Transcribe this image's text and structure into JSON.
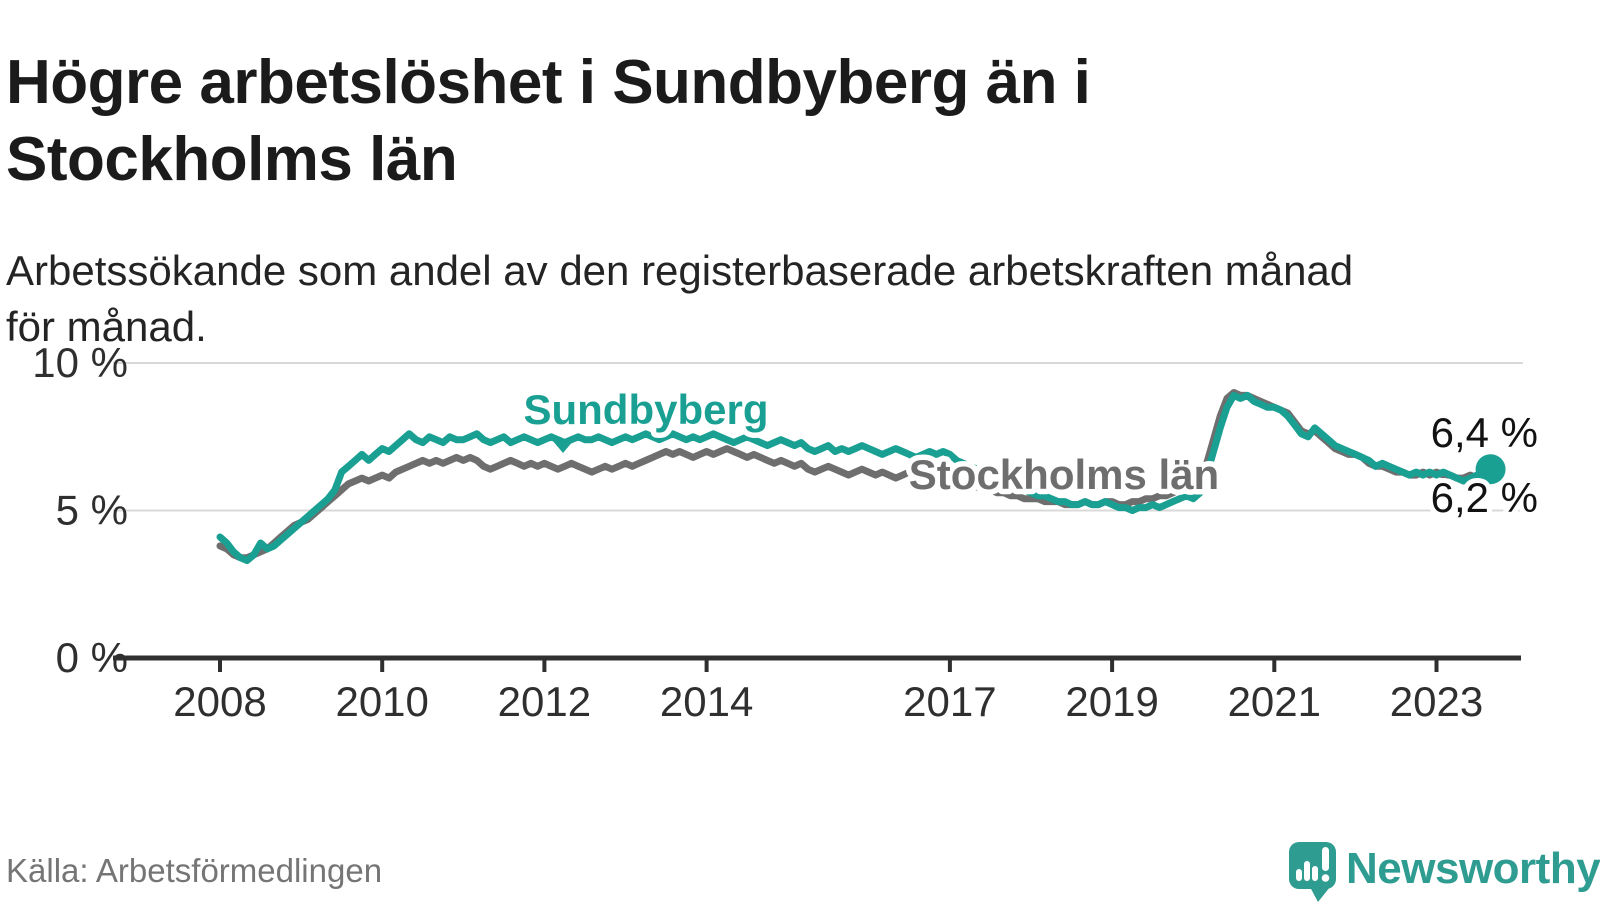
{
  "header": {
    "title_line1": "Högre arbetslöshet i Sundbyberg än i",
    "title_line2": "Stockholms län",
    "subtitle_line1": "Arbetssökande som andel av den registerbaserade arbetskraften månad",
    "subtitle_line2": "för månad."
  },
  "footer": {
    "source": "Källa: Arbetsförmedlingen",
    "brand": "Newsworthy",
    "logo_icon": "newsworthy-pin-icon",
    "brand_color": "#2f9c92"
  },
  "chart_data": {
    "type": "line",
    "title": "Högre arbetslöshet i Sundbyberg än i Stockholms län",
    "subtitle": "Arbetssökande som andel av den registerbaserade arbetskraften månad för månad.",
    "unit": "%",
    "grid": true,
    "legend": "inline-labels",
    "ylim": [
      0,
      10.8
    ],
    "x_range_years": [
      2006.7,
      2024.0
    ],
    "x_start_year": 2008,
    "x_step_months": 1,
    "y_ticks": [
      {
        "value": 0,
        "label": "0 %"
      },
      {
        "value": 5,
        "label": "5 %"
      },
      {
        "value": 10,
        "label": "10 %"
      }
    ],
    "x_ticks": [
      {
        "year": 2008,
        "label": "2008"
      },
      {
        "year": 2010,
        "label": "2010"
      },
      {
        "year": 2012,
        "label": "2012"
      },
      {
        "year": 2014,
        "label": "2014"
      },
      {
        "year": 2017,
        "label": "2017"
      },
      {
        "year": 2019,
        "label": "2019"
      },
      {
        "year": 2021,
        "label": "2021"
      },
      {
        "year": 2023,
        "label": "2023"
      }
    ],
    "series": [
      {
        "name": "Sundbyberg",
        "color": "#1aa093",
        "end_label": "6,4 %",
        "end_value": 6.4,
        "values": [
          4.1,
          3.9,
          3.6,
          3.4,
          3.3,
          3.5,
          3.9,
          3.7,
          3.8,
          4.0,
          4.2,
          4.4,
          4.6,
          4.8,
          5.0,
          5.2,
          5.4,
          5.7,
          6.3,
          6.5,
          6.7,
          6.9,
          6.7,
          6.9,
          7.1,
          7.0,
          7.2,
          7.4,
          7.6,
          7.4,
          7.3,
          7.5,
          7.4,
          7.3,
          7.5,
          7.4,
          7.4,
          7.5,
          7.6,
          7.4,
          7.3,
          7.4,
          7.5,
          7.3,
          7.4,
          7.5,
          7.4,
          7.3,
          7.4,
          7.5,
          7.4,
          7.3,
          7.4,
          7.5,
          7.4,
          7.4,
          7.5,
          7.4,
          7.3,
          7.4,
          7.5,
          7.4,
          7.5,
          7.6,
          7.5,
          7.4,
          7.5,
          7.6,
          7.5,
          7.4,
          7.5,
          7.4,
          7.5,
          7.6,
          7.5,
          7.4,
          7.3,
          7.4,
          7.5,
          7.4,
          7.3,
          7.2,
          7.3,
          7.4,
          7.3,
          7.2,
          7.3,
          7.1,
          7.0,
          7.1,
          7.2,
          7.0,
          7.1,
          7.0,
          7.1,
          7.2,
          7.1,
          7.0,
          6.9,
          7.0,
          7.1,
          7.0,
          6.9,
          6.8,
          6.9,
          7.0,
          6.9,
          7.0,
          6.9,
          6.7,
          6.6,
          6.5,
          6.4,
          6.3,
          6.2,
          6.1,
          6.0,
          5.9,
          5.8,
          5.7,
          5.6,
          5.5,
          5.5,
          5.4,
          5.3,
          5.3,
          5.2,
          5.2,
          5.3,
          5.2,
          5.2,
          5.3,
          5.2,
          5.1,
          5.1,
          5.0,
          5.1,
          5.1,
          5.2,
          5.1,
          5.2,
          5.3,
          5.4,
          5.5,
          5.4,
          5.6,
          6.2,
          7.0,
          7.8,
          8.5,
          8.9,
          8.8,
          8.9,
          8.7,
          8.6,
          8.5,
          8.5,
          8.4,
          8.2,
          7.9,
          7.6,
          7.5,
          7.8,
          7.6,
          7.4,
          7.2,
          7.1,
          7.0,
          6.9,
          6.8,
          6.7,
          6.5,
          6.6,
          6.5,
          6.4,
          6.3,
          6.2,
          6.3,
          6.2,
          6.3,
          6.2,
          6.3,
          6.2,
          6.1,
          6.0,
          6.1,
          6.2,
          6.3,
          6.4
        ]
      },
      {
        "name": "Stockholms län",
        "color": "#6e6e6e",
        "end_label": "6,2 %",
        "end_value": 6.2,
        "values": [
          3.8,
          3.7,
          3.5,
          3.4,
          3.4,
          3.5,
          3.6,
          3.7,
          3.9,
          4.1,
          4.3,
          4.5,
          4.6,
          4.7,
          4.9,
          5.1,
          5.3,
          5.5,
          5.7,
          5.9,
          6.0,
          6.1,
          6.0,
          6.1,
          6.2,
          6.1,
          6.3,
          6.4,
          6.5,
          6.6,
          6.7,
          6.6,
          6.7,
          6.6,
          6.7,
          6.8,
          6.7,
          6.8,
          6.7,
          6.5,
          6.4,
          6.5,
          6.6,
          6.7,
          6.6,
          6.5,
          6.6,
          6.5,
          6.6,
          6.5,
          6.4,
          6.5,
          6.6,
          6.5,
          6.4,
          6.3,
          6.4,
          6.5,
          6.4,
          6.5,
          6.6,
          6.5,
          6.6,
          6.7,
          6.8,
          6.9,
          7.0,
          6.9,
          7.0,
          6.9,
          6.8,
          6.9,
          7.0,
          6.9,
          7.0,
          7.1,
          7.0,
          6.9,
          6.8,
          6.9,
          6.8,
          6.7,
          6.6,
          6.7,
          6.6,
          6.5,
          6.6,
          6.4,
          6.3,
          6.4,
          6.5,
          6.4,
          6.3,
          6.2,
          6.3,
          6.4,
          6.3,
          6.2,
          6.3,
          6.2,
          6.1,
          6.2,
          6.3,
          6.2,
          6.1,
          6.0,
          6.1,
          6.0,
          6.0,
          5.9,
          5.9,
          5.8,
          5.8,
          5.7,
          5.7,
          5.6,
          5.6,
          5.5,
          5.5,
          5.4,
          5.4,
          5.4,
          5.3,
          5.3,
          5.3,
          5.2,
          5.2,
          5.2,
          5.3,
          5.2,
          5.2,
          5.3,
          5.3,
          5.2,
          5.2,
          5.3,
          5.3,
          5.4,
          5.4,
          5.5,
          5.5,
          5.6,
          5.7,
          5.8,
          5.8,
          6.0,
          6.6,
          7.4,
          8.2,
          8.8,
          9.0,
          8.9,
          8.9,
          8.8,
          8.7,
          8.6,
          8.5,
          8.4,
          8.3,
          8.0,
          7.7,
          7.6,
          7.7,
          7.5,
          7.3,
          7.1,
          7.0,
          6.9,
          6.9,
          6.8,
          6.6,
          6.5,
          6.5,
          6.4,
          6.3,
          6.3,
          6.2,
          6.2,
          6.3,
          6.2,
          6.3,
          6.2,
          6.2,
          6.1,
          6.1,
          6.2,
          6.1,
          6.2,
          6.2
        ]
      }
    ]
  }
}
